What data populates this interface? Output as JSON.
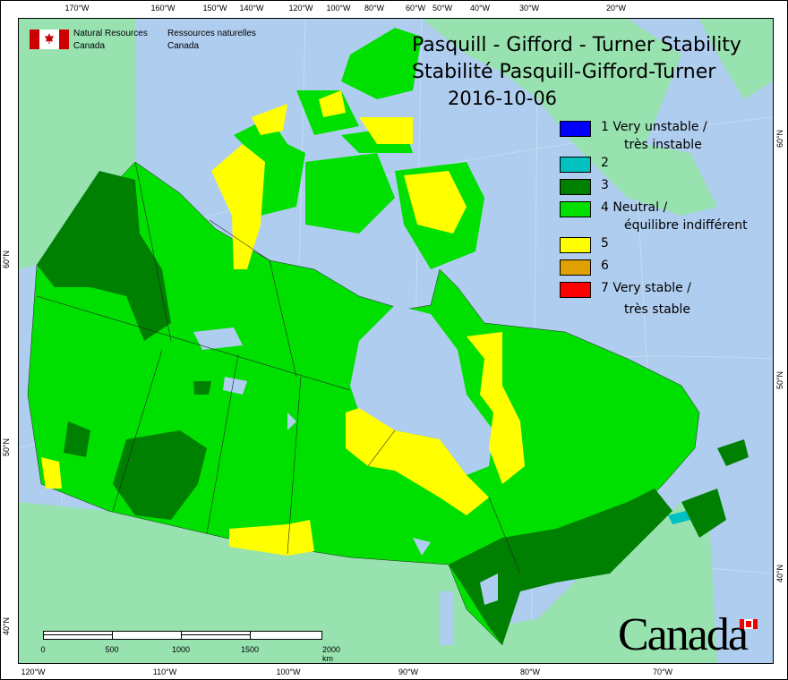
{
  "header": {
    "org_en_line1": "Natural Resources",
    "org_en_line2": "Canada",
    "org_fr_line1": "Ressources naturelles",
    "org_fr_line2": "Canada"
  },
  "title": {
    "line1": "Pasquill - Gifford - Turner Stability",
    "line2": "Stabilité Pasquill-Gifford-Turner",
    "date": "2016-10-06"
  },
  "legend": [
    {
      "label": "1 Very unstable /",
      "sub": "très instable",
      "color": "#0000ff"
    },
    {
      "label": "2",
      "sub": "",
      "color": "#00c0c0"
    },
    {
      "label": "3",
      "sub": "",
      "color": "#008000"
    },
    {
      "label": "4 Neutral /",
      "sub": "équilibre indifférent",
      "color": "#00e000"
    },
    {
      "label": "5",
      "sub": "",
      "color": "#ffff00"
    },
    {
      "label": "6",
      "sub": "",
      "color": "#e0a000"
    },
    {
      "label": "7 Very stable /",
      "sub": "très stable",
      "color": "#ff0000"
    }
  ],
  "graticule": {
    "top": [
      "170°W",
      "160°W",
      "150°W",
      "140°W",
      "120°W",
      "100°W",
      "80°W",
      "60°W",
      "50°W",
      "40°W",
      "30°W",
      "20°W"
    ],
    "bottom": [
      "120°W",
      "110°W",
      "100°W",
      "90°W",
      "80°W",
      "70°W"
    ],
    "left": [
      "60°N",
      "50°N",
      "40°N"
    ],
    "right": [
      "60°N",
      "50°N",
      "40°N"
    ]
  },
  "scale_bar": {
    "labels": [
      "0",
      "500",
      "1000",
      "1500",
      "2000 km"
    ]
  },
  "wordmark": "Canada",
  "colors": {
    "ocean": "#afcdef",
    "other_land": "#98e2b0"
  }
}
